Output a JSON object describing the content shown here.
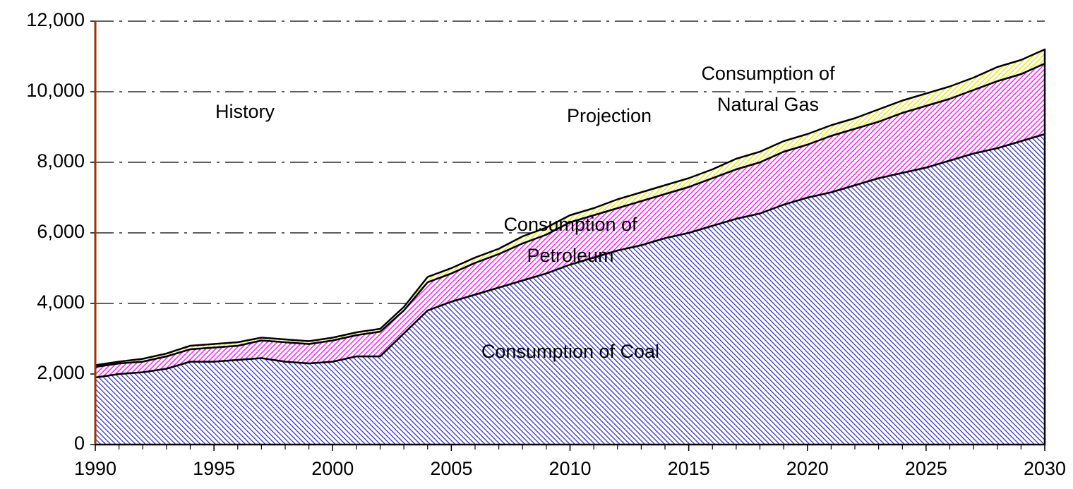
{
  "chart_data": {
    "type": "stacked_area",
    "x": [
      1990,
      1991,
      1992,
      1993,
      1994,
      1995,
      1996,
      1997,
      1998,
      1999,
      2000,
      2001,
      2002,
      2003,
      2004,
      2005,
      2006,
      2007,
      2008,
      2009,
      2010,
      2011,
      2012,
      2013,
      2014,
      2015,
      2016,
      2017,
      2018,
      2019,
      2020,
      2021,
      2022,
      2023,
      2024,
      2025,
      2026,
      2027,
      2028,
      2029,
      2030
    ],
    "series": [
      {
        "name": "Consumption of Coal",
        "color": "#3333cc",
        "values": [
          1900,
          2000,
          2050,
          2150,
          2350,
          2350,
          2400,
          2450,
          2350,
          2300,
          2350,
          2500,
          2500,
          3150,
          3800,
          4050,
          4250,
          4450,
          4650,
          4850,
          5100,
          5300,
          5500,
          5650,
          5850,
          6000,
          6200,
          6400,
          6550,
          6800,
          7000,
          7150,
          7350,
          7550,
          7700,
          7850,
          8050,
          8250,
          8400,
          8600,
          8800
        ]
      },
      {
        "name": "Consumption of Petroleum",
        "color": "#ff00ff",
        "values": [
          300,
          300,
          300,
          350,
          350,
          400,
          400,
          500,
          550,
          550,
          600,
          600,
          700,
          650,
          800,
          800,
          900,
          950,
          1050,
          1100,
          1200,
          1200,
          1200,
          1250,
          1250,
          1300,
          1350,
          1400,
          1450,
          1500,
          1500,
          1600,
          1600,
          1600,
          1700,
          1750,
          1750,
          1800,
          1900,
          1900,
          2000
        ]
      },
      {
        "name": "Consumption of Natural Gas",
        "color": "#e6e600",
        "values": [
          50,
          50,
          80,
          80,
          100,
          100,
          100,
          80,
          80,
          80,
          80,
          80,
          80,
          100,
          150,
          150,
          150,
          150,
          200,
          200,
          200,
          200,
          250,
          250,
          250,
          250,
          250,
          300,
          300,
          300,
          300,
          300,
          300,
          350,
          350,
          350,
          350,
          350,
          400,
          400,
          400
        ]
      }
    ],
    "annotations": [
      [
        "History"
      ],
      [
        "Projection"
      ],
      [
        "Consumption of Coal"
      ],
      [
        "Consumption of",
        "Petroleum"
      ],
      [
        "Consumption of",
        "Natural Gas"
      ]
    ],
    "xlim": [
      1990,
      2030
    ],
    "xticks": [
      1990,
      1995,
      2000,
      2005,
      2010,
      2015,
      2020,
      2025,
      2030
    ],
    "ylim": [
      0,
      12000
    ],
    "yticks": [
      0,
      {
        "value": 2000,
        "label": "2,000"
      },
      {
        "value": 4000,
        "label": "4,000"
      },
      {
        "value": 6000,
        "label": "6,000"
      },
      {
        "value": 8000,
        "label": "8,000"
      },
      {
        "value": 10000,
        "label": "10,000"
      },
      {
        "value": 12000,
        "label": "12,000"
      }
    ],
    "grid": true
  }
}
